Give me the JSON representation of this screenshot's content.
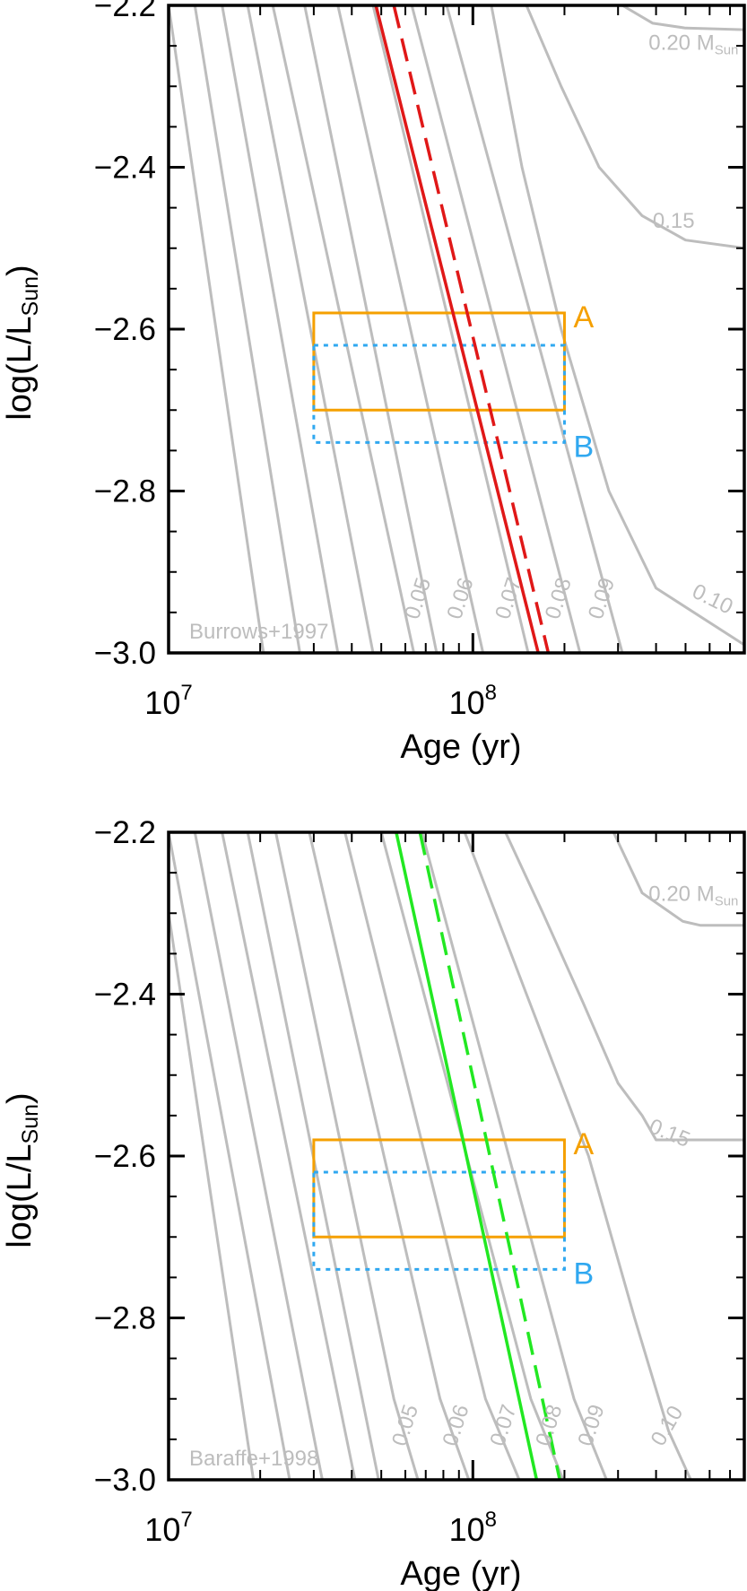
{
  "chart_data": [
    {
      "type": "line",
      "panel_label": "Burrows+1997",
      "xlabel": "Age (yr)",
      "ylabel_main": "log(L/L",
      "ylabel_sub": "Sun",
      "ylabel_close": ")",
      "x_scale": "log",
      "xlim": [
        10000000.0,
        780000000.0
      ],
      "ylim": [
        -3.0,
        -2.2
      ],
      "x_ticks": [
        {
          "base": "10",
          "exp": "7",
          "value": 10000000.0
        },
        {
          "base": "10",
          "exp": "8",
          "value": 100000000.0
        }
      ],
      "y_ticks": [
        {
          "label": "−2.2",
          "value": -2.2
        },
        {
          "label": "−2.4",
          "value": -2.4
        },
        {
          "label": "−2.6",
          "value": -2.6
        },
        {
          "label": "−2.8",
          "value": -2.8
        },
        {
          "label": "−3.0",
          "value": -3.0
        }
      ],
      "tracks": [
        {
          "label": "",
          "points": [
            [
              10000000.0,
              -2.2
            ],
            [
              20500000.0,
              -3.0
            ]
          ]
        },
        {
          "label": "",
          "points": [
            [
              12200000.0,
              -2.2
            ],
            [
              27000000.0,
              -3.0
            ]
          ]
        },
        {
          "label": "",
          "points": [
            [
              15000000.0,
              -2.2
            ],
            [
              36000000.0,
              -3.0
            ]
          ]
        },
        {
          "label": "",
          "points": [
            [
              18200000.0,
              -2.2
            ],
            [
              47000000.0,
              -3.0
            ]
          ]
        },
        {
          "label": "",
          "points": [
            [
              22000000.0,
              -2.2
            ],
            [
              64000000.0,
              -3.0
            ]
          ]
        },
        {
          "label": "0.05",
          "points": [
            [
              28000000.0,
              -2.2
            ],
            [
              76000000.0,
              -3.0
            ]
          ]
        },
        {
          "label": "0.06",
          "points": [
            [
              36000000.0,
              -2.2
            ],
            [
              108000000.0,
              -3.0
            ]
          ]
        },
        {
          "label": "0.07",
          "points": [
            [
              47000000.0,
              -2.2
            ],
            [
              152000000.0,
              -3.0
            ]
          ]
        },
        {
          "label": "0.08",
          "points": [
            [
              63000000.0,
              -2.2
            ],
            [
              225000000.0,
              -3.0
            ]
          ]
        },
        {
          "label": "0.09",
          "points": [
            [
              82000000.0,
              -2.2
            ],
            [
              310000000.0,
              -3.0
            ]
          ]
        },
        {
          "label": "0.10",
          "points": [
            [
              115000000.0,
              -2.2
            ],
            [
              145000000.0,
              -2.4
            ],
            [
              195000000.0,
              -2.6
            ],
            [
              280000000.0,
              -2.8
            ],
            [
              400000000.0,
              -2.92
            ],
            [
              780000000.0,
              -2.99
            ]
          ]
        },
        {
          "label": "0.15",
          "points": [
            [
              150000000.0,
              -2.2
            ],
            [
              195000000.0,
              -2.3
            ],
            [
              260000000.0,
              -2.4
            ],
            [
              360000000.0,
              -2.46
            ],
            [
              500000000.0,
              -2.49
            ],
            [
              780000000.0,
              -2.5
            ]
          ]
        },
        {
          "label": "0.20",
          "points": [
            [
              310000000.0,
              -2.2
            ],
            [
              390000000.0,
              -2.222
            ],
            [
              500000000.0,
              -2.228
            ],
            [
              780000000.0,
              -2.23
            ]
          ]
        }
      ],
      "mass_label_unit_main": "M",
      "mass_label_unit_sub": "Sun",
      "mass_labels": [
        {
          "text": "0.05",
          "x": 66000000.0,
          "y": -2.96,
          "angle": -72
        },
        {
          "text": "0.06",
          "x": 91000000.0,
          "y": -2.96,
          "angle": -72
        },
        {
          "text": "0.07",
          "x": 131000000.0,
          "y": -2.96,
          "angle": -72
        },
        {
          "text": "0.08",
          "x": 191000000.0,
          "y": -2.96,
          "angle": -72
        },
        {
          "text": "0.09",
          "x": 265000000.0,
          "y": -2.96,
          "angle": -72
        },
        {
          "text": "0.10",
          "x": 520000000.0,
          "y": -2.93,
          "angle": 26
        },
        {
          "text": "0.15",
          "x": 390000000.0,
          "y": -2.475,
          "angle": 0
        },
        {
          "text": "0.20 ",
          "x": 378000000.0,
          "y": -2.255,
          "angle": 0
        }
      ],
      "boxes": [
        {
          "label": "A",
          "color": "#f5a000",
          "style": "solid",
          "x": [
            30000000.0,
            200000000.0
          ],
          "y": [
            -2.7,
            -2.58
          ]
        },
        {
          "label": "B",
          "color": "#30a8f0",
          "style": "dotted",
          "x": [
            30000000.0,
            200000000.0
          ],
          "y": [
            -2.74,
            -2.62
          ]
        }
      ],
      "lines": [
        {
          "color": "#e01818",
          "style": "solid",
          "points": [
            [
              48000000.0,
              -2.2
            ],
            [
              164000000.0,
              -3.0
            ]
          ]
        },
        {
          "color": "#e01818",
          "style": "dashed",
          "points": [
            [
              55000000.0,
              -2.2
            ],
            [
              177000000.0,
              -3.0
            ]
          ]
        }
      ]
    },
    {
      "type": "line",
      "panel_label": "Baraffe+1998",
      "xlabel": "Age (yr)",
      "ylabel_main": "log(L/L",
      "ylabel_sub": "Sun",
      "ylabel_close": ")",
      "x_scale": "log",
      "xlim": [
        10000000.0,
        780000000.0
      ],
      "ylim": [
        -3.0,
        -2.2
      ],
      "x_ticks": [
        {
          "base": "10",
          "exp": "7",
          "value": 10000000.0
        },
        {
          "base": "10",
          "exp": "8",
          "value": 100000000.0
        }
      ],
      "y_ticks": [
        {
          "label": "−2.2",
          "value": -2.2
        },
        {
          "label": "−2.4",
          "value": -2.4
        },
        {
          "label": "−2.6",
          "value": -2.6
        },
        {
          "label": "−2.8",
          "value": -2.8
        },
        {
          "label": "−3.0",
          "value": -3.0
        }
      ],
      "tracks": [
        {
          "label": "",
          "points": [
            [
              10000000.0,
              -2.3
            ],
            [
              19000000.0,
              -3.0
            ]
          ]
        },
        {
          "label": "",
          "points": [
            [
              10000000.0,
              -2.2
            ],
            [
              25000000.0,
              -3.0
            ]
          ]
        },
        {
          "label": "",
          "points": [
            [
              12200000.0,
              -2.2
            ],
            [
              32000000.0,
              -3.0
            ]
          ]
        },
        {
          "label": "",
          "points": [
            [
              15000000.0,
              -2.2
            ],
            [
              41000000.0,
              -3.0
            ]
          ]
        },
        {
          "label": "",
          "points": [
            [
              18200000.0,
              -2.2
            ],
            [
              49000000.0,
              -3.0
            ]
          ]
        },
        {
          "label": "0.05",
          "points": [
            [
              22500000.0,
              -2.2
            ],
            [
              55000000.0,
              -2.9
            ],
            [
              66000000.0,
              -3.0
            ]
          ]
        },
        {
          "label": "0.06",
          "points": [
            [
              29000000.0,
              -2.2
            ],
            [
              78000000.0,
              -2.9
            ],
            [
              97000000.0,
              -3.0
            ]
          ]
        },
        {
          "label": "0.07",
          "points": [
            [
              38000000.0,
              -2.2
            ],
            [
              110000000.0,
              -2.9
            ],
            [
              142000000.0,
              -3.0
            ]
          ]
        },
        {
          "label": "0.08",
          "points": [
            [
              50000000.0,
              -2.2
            ],
            [
              155000000.0,
              -2.9
            ],
            [
              198000000.0,
              -3.0
            ]
          ]
        },
        {
          "label": "0.09",
          "points": [
            [
              68000000.0,
              -2.2
            ],
            [
              215000000.0,
              -2.9
            ],
            [
              275000000.0,
              -3.0
            ]
          ]
        },
        {
          "label": "0.10",
          "points": [
            [
              94000000.0,
              -2.2
            ],
            [
              150000000.0,
              -2.4
            ],
            [
              240000000.0,
              -2.6
            ],
            [
              340000000.0,
              -2.8
            ],
            [
              440000000.0,
              -2.94
            ],
            [
              520000000.0,
              -3.0
            ]
          ]
        },
        {
          "label": "0.15",
          "points": [
            [
              128000000.0,
              -2.2
            ],
            [
              170000000.0,
              -2.3
            ],
            [
              230000000.0,
              -2.41
            ],
            [
              300000000.0,
              -2.51
            ],
            [
              360000000.0,
              -2.55
            ],
            [
              400000000.0,
              -2.58
            ],
            [
              780000000.0,
              -2.58
            ]
          ]
        },
        {
          "label": "0.20",
          "points": [
            [
              290000000.0,
              -2.2
            ],
            [
              360000000.0,
              -2.275
            ],
            [
              490000000.0,
              -2.31
            ],
            [
              560000000.0,
              -2.315
            ],
            [
              780000000.0,
              -2.315
            ]
          ]
        }
      ],
      "mass_label_unit_main": "M",
      "mass_label_unit_sub": "Sun",
      "mass_labels": [
        {
          "text": "0.05",
          "x": 60000000.0,
          "y": -2.96,
          "angle": -72
        },
        {
          "text": "0.06",
          "x": 88000000.0,
          "y": -2.96,
          "angle": -72
        },
        {
          "text": "0.07",
          "x": 126000000.0,
          "y": -2.96,
          "angle": -72
        },
        {
          "text": "0.08",
          "x": 178000000.0,
          "y": -2.96,
          "angle": -72
        },
        {
          "text": "0.09",
          "x": 245000000.0,
          "y": -2.96,
          "angle": -72
        },
        {
          "text": "0.10",
          "x": 420000000.0,
          "y": -2.96,
          "angle": -60
        },
        {
          "text": "0.15",
          "x": 375000000.0,
          "y": -2.57,
          "angle": 22
        },
        {
          "text": "0.20 ",
          "x": 378000000.0,
          "y": -2.285,
          "angle": 0
        }
      ],
      "boxes": [
        {
          "label": "A",
          "color": "#f5a000",
          "style": "solid",
          "x": [
            30000000.0,
            200000000.0
          ],
          "y": [
            -2.7,
            -2.58
          ]
        },
        {
          "label": "B",
          "color": "#30a8f0",
          "style": "dotted",
          "x": [
            30000000.0,
            200000000.0
          ],
          "y": [
            -2.74,
            -2.62
          ]
        }
      ],
      "lines": [
        {
          "color": "#22e822",
          "style": "solid",
          "points": [
            [
              56000000.0,
              -2.2
            ],
            [
              162000000.0,
              -3.0
            ]
          ]
        },
        {
          "color": "#22e822",
          "style": "dashed",
          "points": [
            [
              67000000.0,
              -2.2
            ],
            [
              193000000.0,
              -3.0
            ]
          ]
        }
      ]
    }
  ]
}
